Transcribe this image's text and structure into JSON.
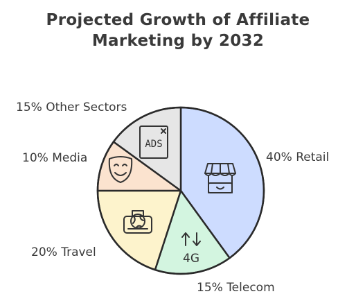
{
  "title": "Projected Growth of Affiliate Marketing by 2032",
  "chart_data": {
    "type": "pie",
    "title": "Projected Growth of Affiliate Marketing by 2032",
    "unit": "%",
    "slices": [
      {
        "label": "40% Retail",
        "category": "Retail",
        "value": 40,
        "color": "#cddcff",
        "icon": "market-stall-icon"
      },
      {
        "label": "15% Telecom",
        "category": "Telecom",
        "value": 15,
        "color": "#d3f5e0",
        "icon": "4g-icon",
        "icon_text": "4G"
      },
      {
        "label": "20% Travel",
        "category": "Travel",
        "value": 20,
        "color": "#fdf3cc",
        "icon": "suitcase-globe-icon"
      },
      {
        "label": "10% Media",
        "category": "Media",
        "value": 10,
        "color": "#fbe3cf",
        "icon": "smiley-mask-icon"
      },
      {
        "label": "15% Other Sectors",
        "category": "Other Sectors",
        "value": 15,
        "color": "#e6e6e6",
        "icon": "ads-icon",
        "icon_text": "ADS"
      }
    ]
  }
}
